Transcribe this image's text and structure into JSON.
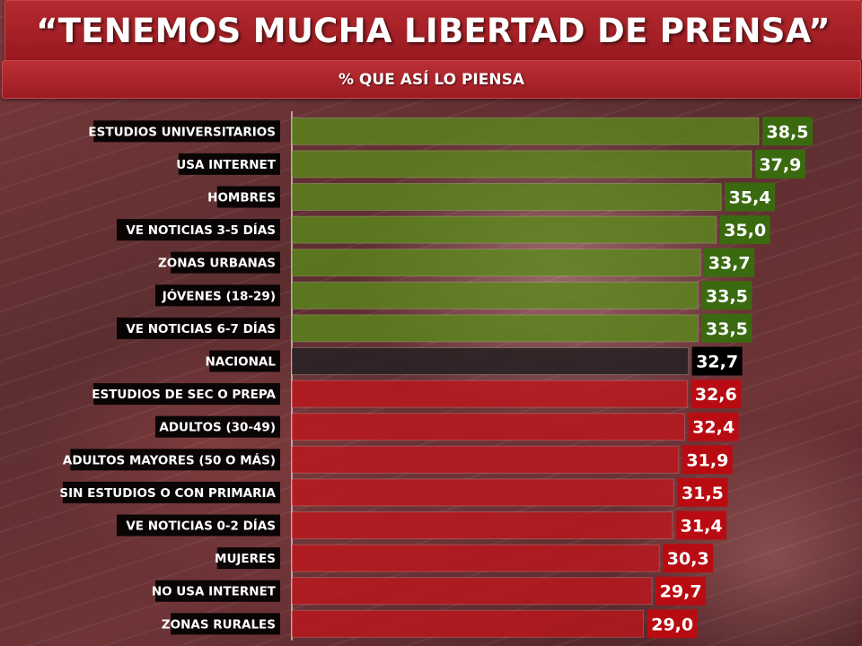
{
  "header": {
    "title": "“TENEMOS MUCHA LIBERTAD DE PRENSA”",
    "subtitle": "% QUE ASÍ LO PIENSA"
  },
  "colors": {
    "positive": "#5a8a1a",
    "positive_label": "#3a6a10",
    "national": "#2a2224",
    "national_label": "#000000",
    "negative": "#c0161c",
    "negative_label": "#b80c12"
  },
  "chart_data": {
    "type": "bar",
    "orientation": "horizontal",
    "title": "“TENEMOS MUCHA LIBERTAD DE PRENSA”",
    "subtitle": "% QUE ASÍ LO PIENSA",
    "categories": [
      "ESTUDIOS UNIVERSITARIOS",
      "USA INTERNET",
      "HOMBRES",
      "VE NOTICIAS 3-5 DÍAS",
      "ZONAS URBANAS",
      "JÓVENES (18-29)",
      "VE NOTICIAS 6-7 DÍAS",
      "NACIONAL",
      "ESTUDIOS DE SEC O PREPA",
      "ADULTOS (30-49)",
      "ADULTOS MAYORES (50 O MÁS)",
      "SIN ESTUDIOS O CON PRIMARIA",
      "VE NOTICIAS 0-2 DÍAS",
      "MUJERES",
      "NO USA INTERNET",
      "ZONAS RURALES"
    ],
    "values": [
      38.5,
      37.9,
      35.4,
      35.0,
      33.7,
      33.5,
      33.5,
      32.7,
      32.6,
      32.4,
      31.9,
      31.5,
      31.4,
      30.3,
      29.7,
      29.0
    ],
    "value_labels": [
      "38,5",
      "37,9",
      "35,4",
      "35,0",
      "33,7",
      "33,5",
      "33,5",
      "32,7",
      "32,6",
      "32,4",
      "31,9",
      "31,5",
      "31,4",
      "30,3",
      "29,7",
      "29,0"
    ],
    "groups": [
      "above",
      "above",
      "above",
      "above",
      "above",
      "above",
      "above",
      "national",
      "below",
      "below",
      "below",
      "below",
      "below",
      "below",
      "below",
      "below"
    ],
    "xlim": [
      0,
      38.5
    ],
    "grid": false,
    "legend": "none"
  }
}
